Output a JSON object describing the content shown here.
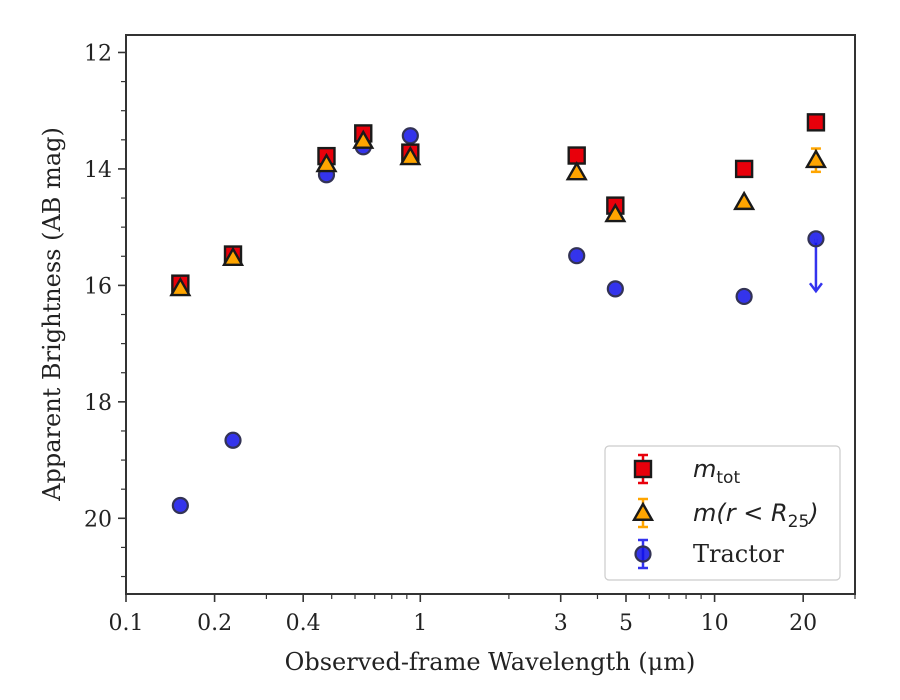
{
  "chart_data": {
    "type": "scatter",
    "xlabel": "Observed-frame Wavelength (μm)",
    "ylabel": "Apparent Brightness (AB mag)",
    "x_scale": "log",
    "xlim": [
      0.1,
      30
    ],
    "ylim": [
      21.3,
      11.7
    ],
    "y_inverted": true,
    "x_ticks": [
      {
        "value": 0.1,
        "label": "0.1"
      },
      {
        "value": 0.2,
        "label": "0.2"
      },
      {
        "value": 0.4,
        "label": "0.4"
      },
      {
        "value": 1,
        "label": "1"
      },
      {
        "value": 3,
        "label": "3"
      },
      {
        "value": 5,
        "label": "5"
      },
      {
        "value": 10,
        "label": "10"
      },
      {
        "value": 20,
        "label": "20"
      }
    ],
    "y_ticks": [
      {
        "value": 12,
        "label": "12"
      },
      {
        "value": 14,
        "label": "14"
      },
      {
        "value": 16,
        "label": "16"
      },
      {
        "value": 18,
        "label": "18"
      },
      {
        "value": 20,
        "label": "20"
      }
    ],
    "legend_position": "bottom-right",
    "grid": false,
    "series": [
      {
        "name": "m_tot",
        "legend_math": "m",
        "legend_sub": "tot",
        "legend_suffix": "",
        "marker": "square",
        "color": "#e8000b",
        "errorbar_color": "#e8000b",
        "points": [
          {
            "x": 0.153,
            "y": 15.97
          },
          {
            "x": 0.231,
            "y": 15.47
          },
          {
            "x": 0.48,
            "y": 13.78
          },
          {
            "x": 0.64,
            "y": 13.39
          },
          {
            "x": 0.925,
            "y": 13.72
          },
          {
            "x": 3.4,
            "y": 13.77
          },
          {
            "x": 4.6,
            "y": 14.63
          },
          {
            "x": 12.6,
            "y": 14.0
          },
          {
            "x": 22.1,
            "y": 13.2
          }
        ]
      },
      {
        "name": "m(r < R_25)",
        "legend_math": "m(r < R",
        "legend_sub": "25",
        "legend_suffix": ")",
        "marker": "triangle",
        "color": "#ffa500",
        "errorbar_color": "#ffa500",
        "points": [
          {
            "x": 0.153,
            "y": 16.05
          },
          {
            "x": 0.231,
            "y": 15.53
          },
          {
            "x": 0.48,
            "y": 13.92
          },
          {
            "x": 0.64,
            "y": 13.52
          },
          {
            "x": 0.925,
            "y": 13.8
          },
          {
            "x": 3.4,
            "y": 14.06
          },
          {
            "x": 4.6,
            "y": 14.78
          },
          {
            "x": 12.6,
            "y": 14.57
          },
          {
            "x": 22.1,
            "y": 13.85,
            "yerr": 0.2
          }
        ]
      },
      {
        "name": "Tractor",
        "legend_math": "",
        "legend_sub": "",
        "legend_suffix": "",
        "legend_label": "Tractor",
        "marker": "circle",
        "color": "#1010e8",
        "errorbar_color": "#3333ee",
        "points": [
          {
            "x": 0.153,
            "y": 19.78
          },
          {
            "x": 0.231,
            "y": 18.66
          },
          {
            "x": 0.48,
            "y": 14.1
          },
          {
            "x": 0.64,
            "y": 13.62
          },
          {
            "x": 0.925,
            "y": 13.43
          },
          {
            "x": 3.4,
            "y": 15.49
          },
          {
            "x": 4.6,
            "y": 16.06
          },
          {
            "x": 12.6,
            "y": 16.19
          },
          {
            "x": 22.1,
            "y": 15.2,
            "upper_limit": true,
            "limit_to": 16.1
          }
        ]
      }
    ]
  }
}
